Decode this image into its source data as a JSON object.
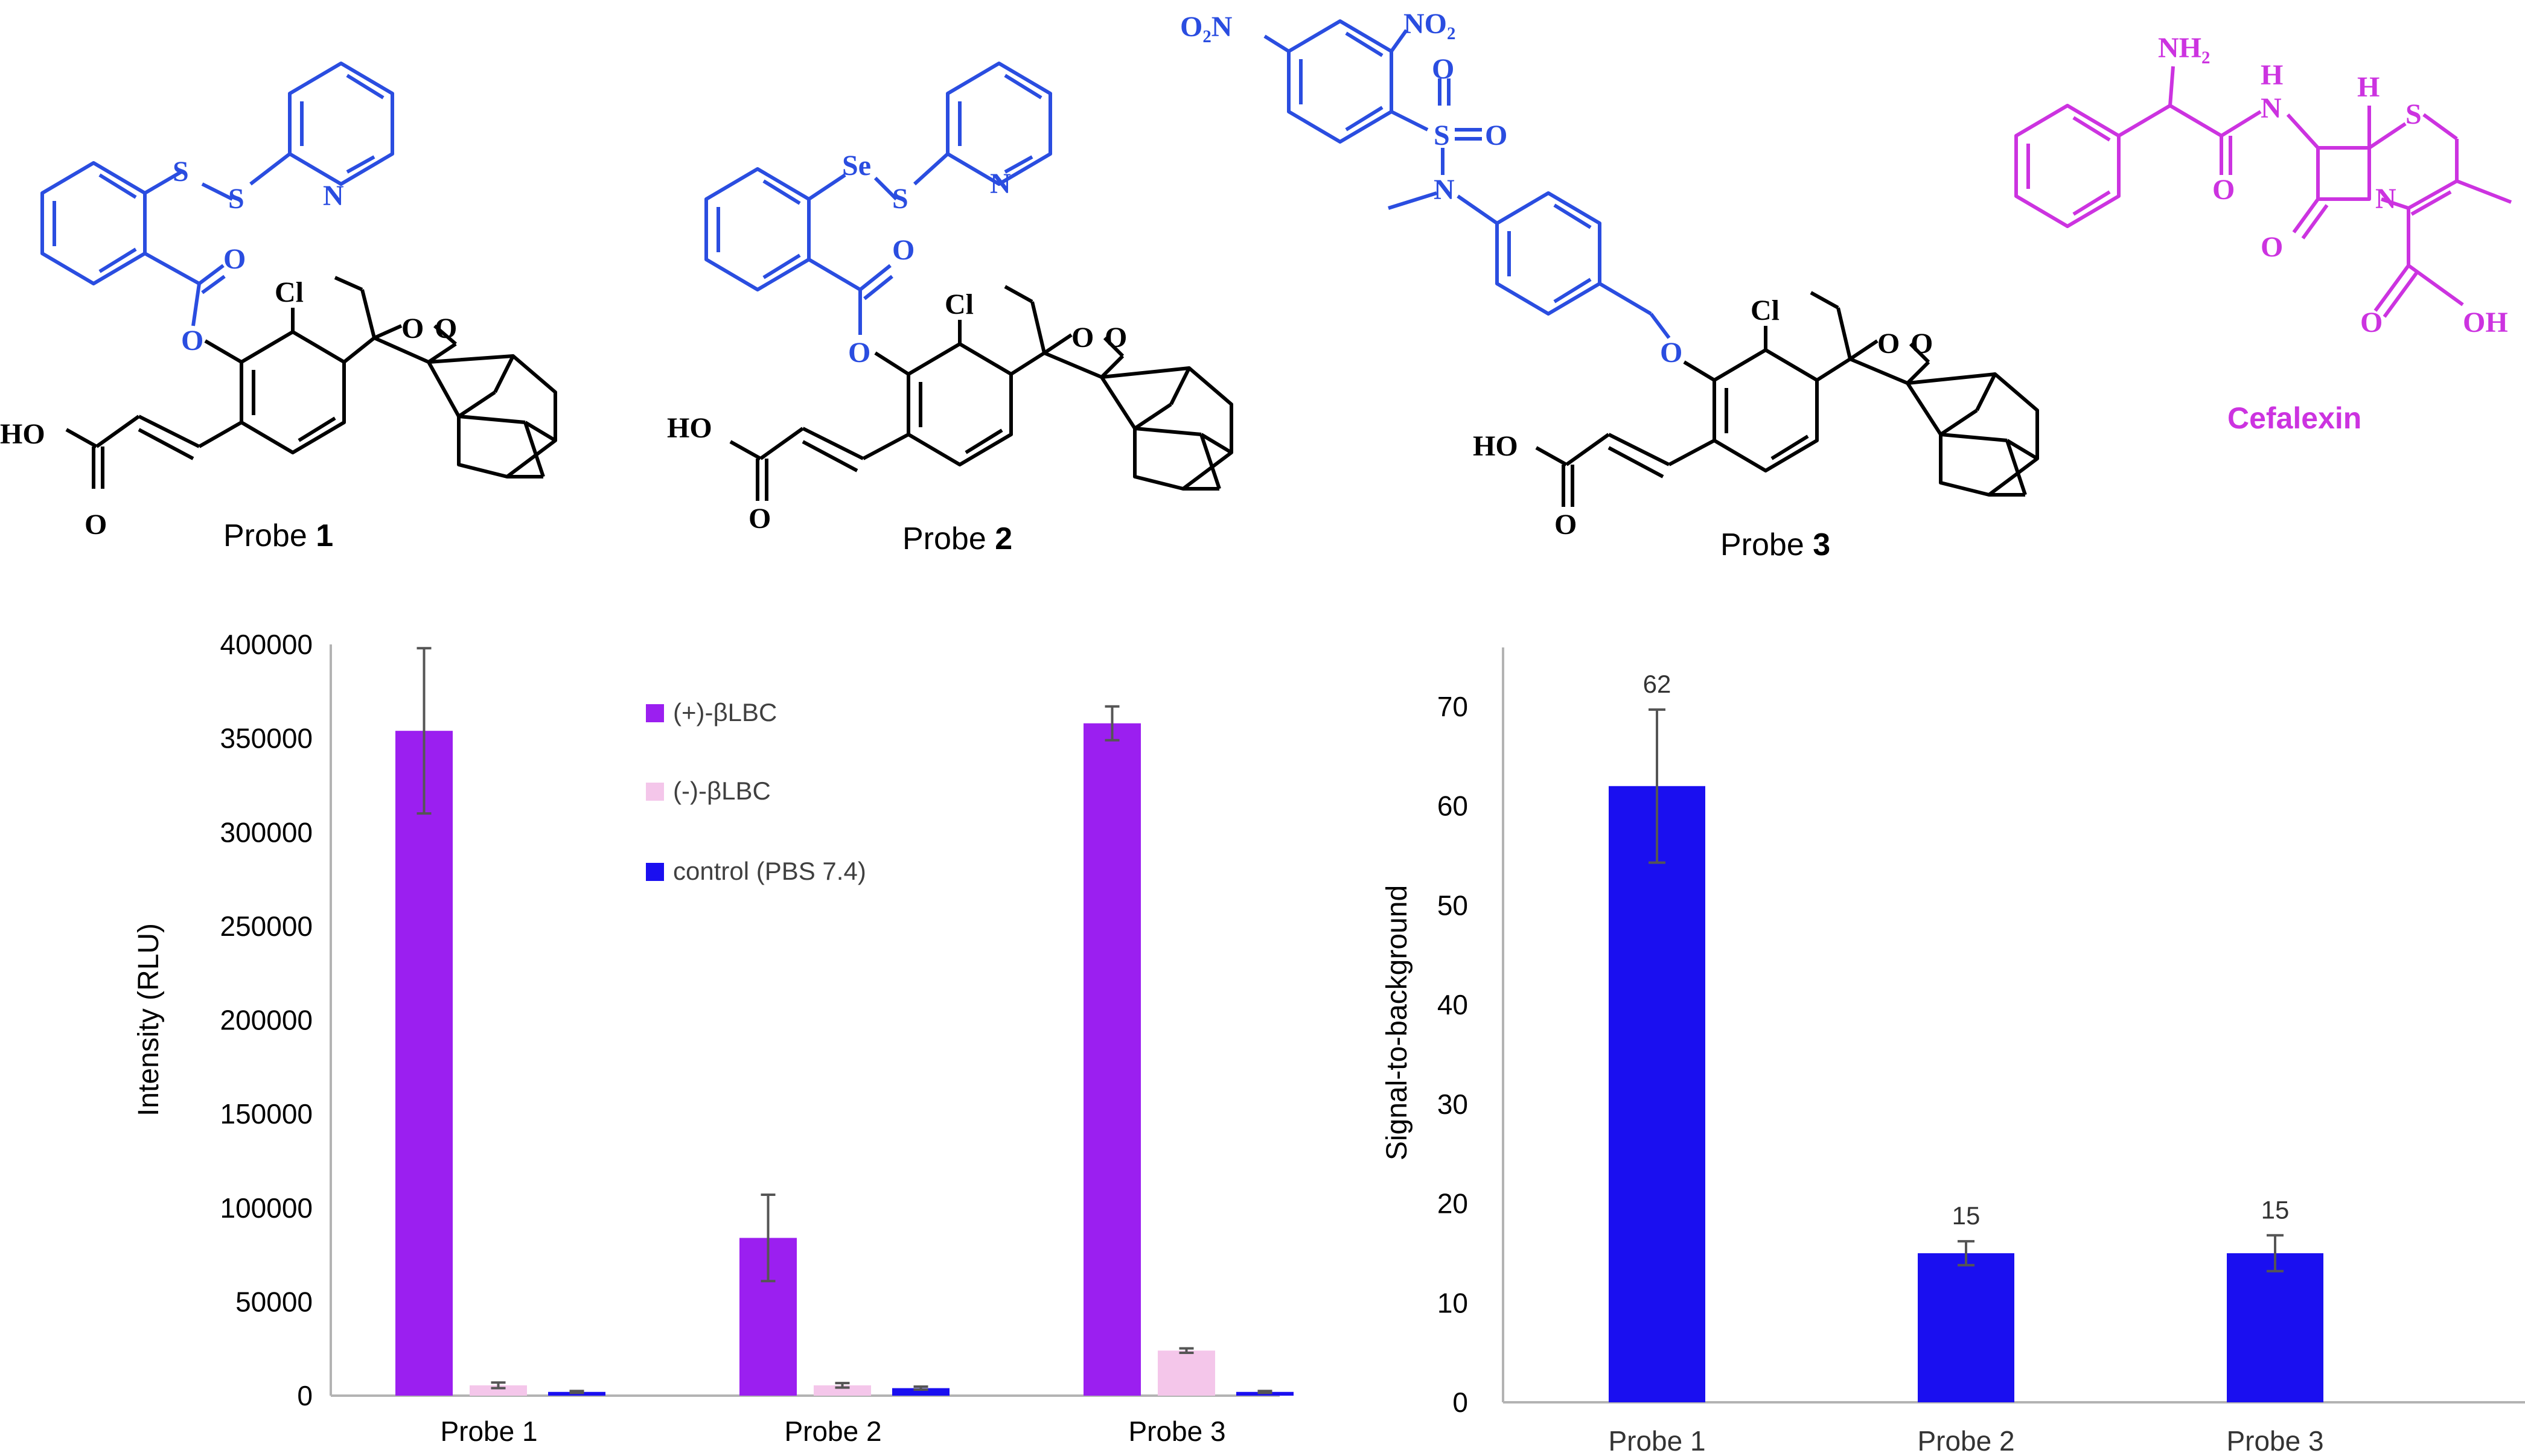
{
  "structures": {
    "probe1": {
      "prefix": "Probe ",
      "number": "1"
    },
    "probe2": {
      "prefix": "Probe ",
      "number": "2"
    },
    "probe3": {
      "prefix": "Probe ",
      "number": "3"
    },
    "cefalexin": "Cefalexin",
    "atoms": {
      "S": "S",
      "Se": "Se",
      "N": "N",
      "O": "O",
      "Cl": "Cl",
      "HO": "HO",
      "OH": "OH",
      "NH2": "NH₂",
      "H": "H",
      "NO2": "NO₂",
      "O2N": "O₂N"
    }
  },
  "colors": {
    "plus_bLBC": "#9b1ff0",
    "minus_bLBC": "#f4c6ea",
    "control": "#1a0ff0",
    "s2b": "#1a0ff0",
    "probe_moiety": "#2a4de0",
    "cefalexin": "#cc33e0",
    "error_bar": "#555555"
  },
  "chart_data": [
    {
      "type": "bar",
      "categories": [
        "Probe 1",
        "Probe 2",
        "Probe 3"
      ],
      "series": [
        {
          "name": "(+)-βLBC",
          "values": [
            354000,
            84000,
            358000
          ],
          "errors": [
            44000,
            23000,
            9000
          ]
        },
        {
          "name": "(-)-βLBC",
          "values": [
            5500,
            5500,
            24000
          ],
          "errors": [
            1500,
            1200,
            1200
          ]
        },
        {
          "name": "control (PBS 7.4)",
          "values": [
            2000,
            4000,
            2000
          ],
          "errors": [
            500,
            800,
            500
          ]
        }
      ],
      "xlabel": "",
      "ylabel": "Intensity (RLU)",
      "ylim": [
        0,
        400000
      ],
      "yticks": [
        "0",
        "50000",
        "100000",
        "150000",
        "200000",
        "250000",
        "300000",
        "350000",
        "400000"
      ],
      "legend_position": "top-center",
      "grid": false
    },
    {
      "type": "bar",
      "categories": [
        "Probe 1",
        "Probe 2",
        "Probe 3"
      ],
      "series": [
        {
          "values": [
            62,
            15,
            15
          ],
          "errors": [
            7.7,
            1.2,
            1.8
          ],
          "labels": [
            "62",
            "15",
            "15"
          ]
        }
      ],
      "xlabel": "",
      "ylabel": "Signal-to-background",
      "ylim": [
        0,
        75
      ],
      "yticks": [
        "0",
        "10",
        "20",
        "30",
        "40",
        "50",
        "60",
        "70"
      ],
      "grid": false
    }
  ]
}
